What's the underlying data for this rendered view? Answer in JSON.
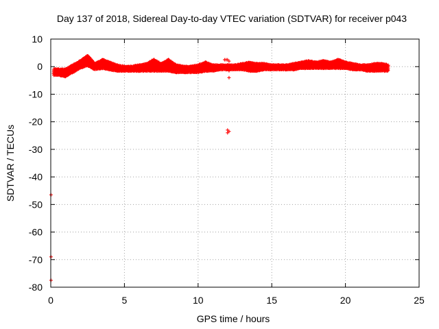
{
  "chart_data": {
    "type": "scatter",
    "title": "Day 137 of 2018, Sidereal Day-to-day VTEC variation (SDTVAR) for receiver p043",
    "xlabel": "GPS time / hours",
    "ylabel": "SDTVAR / TECUs",
    "xlim": [
      0,
      25
    ],
    "ylim": [
      -80,
      10
    ],
    "xticks": [
      0,
      5,
      10,
      15,
      20,
      25
    ],
    "yticks": [
      10,
      0,
      -10,
      -20,
      -30,
      -40,
      -50,
      -60,
      -70,
      -80
    ],
    "grid": true,
    "marker": "plus",
    "color": "#ff0000",
    "band": {
      "x": [
        0.2,
        0.5,
        1.0,
        1.5,
        2.0,
        2.5,
        3.0,
        3.5,
        4.0,
        4.5,
        5.0,
        5.5,
        6.0,
        6.5,
        7.0,
        7.5,
        8.0,
        8.5,
        9.0,
        9.5,
        10.0,
        10.5,
        11.0,
        11.5,
        12.0,
        12.5,
        13.0,
        13.5,
        14.0,
        14.5,
        15.0,
        15.5,
        16.0,
        16.5,
        17.0,
        17.5,
        18.0,
        18.5,
        19.0,
        19.5,
        20.0,
        20.5,
        21.0,
        21.5,
        22.0,
        22.5,
        22.9
      ],
      "low": [
        -3.0,
        -3.0,
        -3.5,
        -2.0,
        -0.5,
        0.5,
        -1.0,
        -0.5,
        -1.0,
        -1.5,
        -1.5,
        -1.5,
        -1.5,
        -1.5,
        -1.5,
        -1.5,
        -1.5,
        -2.0,
        -2.0,
        -2.0,
        -2.0,
        -1.5,
        -1.5,
        -1.0,
        -1.0,
        -1.0,
        -1.0,
        -1.5,
        -1.5,
        -1.0,
        -1.0,
        -1.0,
        -1.0,
        -1.0,
        -0.5,
        -0.5,
        -0.5,
        -0.5,
        -0.5,
        -0.5,
        -0.5,
        -1.0,
        -1.0,
        -1.5,
        -1.5,
        -1.5,
        -1.5
      ],
      "high": [
        -1.0,
        -1.0,
        -1.0,
        0.5,
        2.0,
        4.0,
        1.0,
        2.5,
        1.5,
        0.5,
        0.0,
        0.0,
        0.5,
        1.0,
        2.5,
        1.0,
        2.5,
        0.5,
        0.0,
        0.0,
        0.5,
        1.5,
        0.5,
        0.5,
        0.5,
        0.5,
        1.0,
        1.5,
        1.0,
        1.0,
        0.5,
        0.5,
        0.5,
        1.0,
        1.5,
        2.0,
        1.5,
        2.0,
        1.5,
        2.5,
        1.5,
        1.0,
        0.5,
        0.5,
        1.0,
        1.0,
        0.5
      ]
    },
    "outliers": [
      {
        "x": 11.8,
        "y": 2.5
      },
      {
        "x": 11.9,
        "y": 2.5
      },
      {
        "x": 12.0,
        "y": 2.5
      },
      {
        "x": 12.1,
        "y": 2.0
      },
      {
        "x": 12.2,
        "y": 0.0
      },
      {
        "x": 12.1,
        "y": -1.5
      },
      {
        "x": 12.1,
        "y": -4.0
      },
      {
        "x": 12.0,
        "y": -23.0
      },
      {
        "x": 12.1,
        "y": -23.5
      },
      {
        "x": 12.0,
        "y": -24.0
      },
      {
        "x": 0.02,
        "y": -46.5
      },
      {
        "x": 0.02,
        "y": -69.0
      },
      {
        "x": 0.02,
        "y": -77.5
      }
    ]
  }
}
